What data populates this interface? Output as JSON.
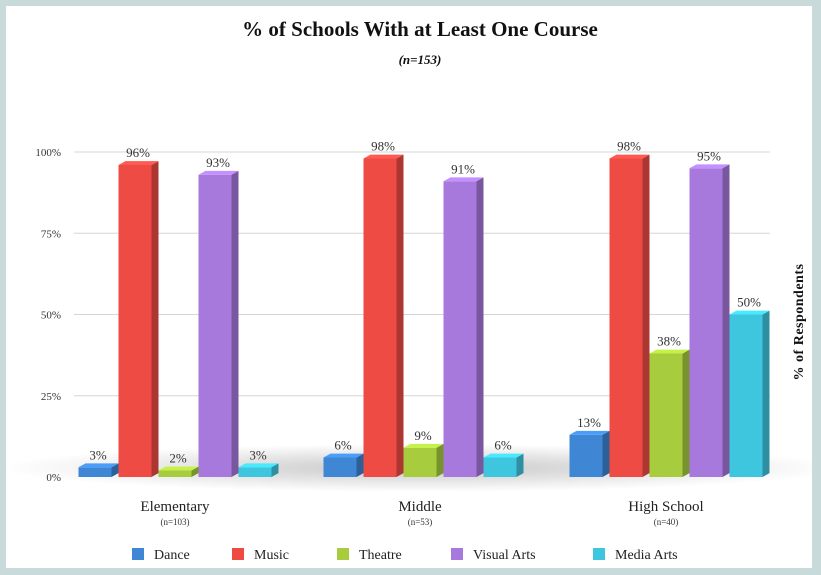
{
  "chart_data": {
    "type": "bar",
    "title": "% of Schools With at Least One Course",
    "subtitle": "(n=153)",
    "ylabel": "% of Respondents",
    "xlabel": "",
    "ylim": [
      0,
      100
    ],
    "yticks": [
      "0%",
      "25%",
      "50%",
      "75%",
      "100%"
    ],
    "ytick_values": [
      0,
      25,
      50,
      75,
      100
    ],
    "grid": true,
    "legend_position": "bottom",
    "categories": [
      "Elementary",
      "Middle",
      "High School"
    ],
    "category_notes": [
      "(n=103)",
      "(n=53)",
      "(n=40)"
    ],
    "series": [
      {
        "name": "Dance",
        "color": "#3f86d4",
        "values": [
          3,
          6,
          13
        ],
        "labels": [
          "3%",
          "6%",
          "13%"
        ]
      },
      {
        "name": "Music",
        "color": "#ef4b45",
        "values": [
          96,
          98,
          98
        ],
        "labels": [
          "96%",
          "98%",
          "98%"
        ]
      },
      {
        "name": "Theatre",
        "color": "#a7cc3e",
        "values": [
          2,
          9,
          38
        ],
        "labels": [
          "2%",
          "9%",
          "38%"
        ]
      },
      {
        "name": "Visual Arts",
        "color": "#a779dc",
        "values": [
          93,
          91,
          95
        ],
        "labels": [
          "93%",
          "91%",
          "95%"
        ]
      },
      {
        "name": "Media Arts",
        "color": "#3ec6df",
        "values": [
          3,
          6,
          50
        ],
        "labels": [
          "3%",
          "6%",
          "50%"
        ]
      }
    ]
  }
}
